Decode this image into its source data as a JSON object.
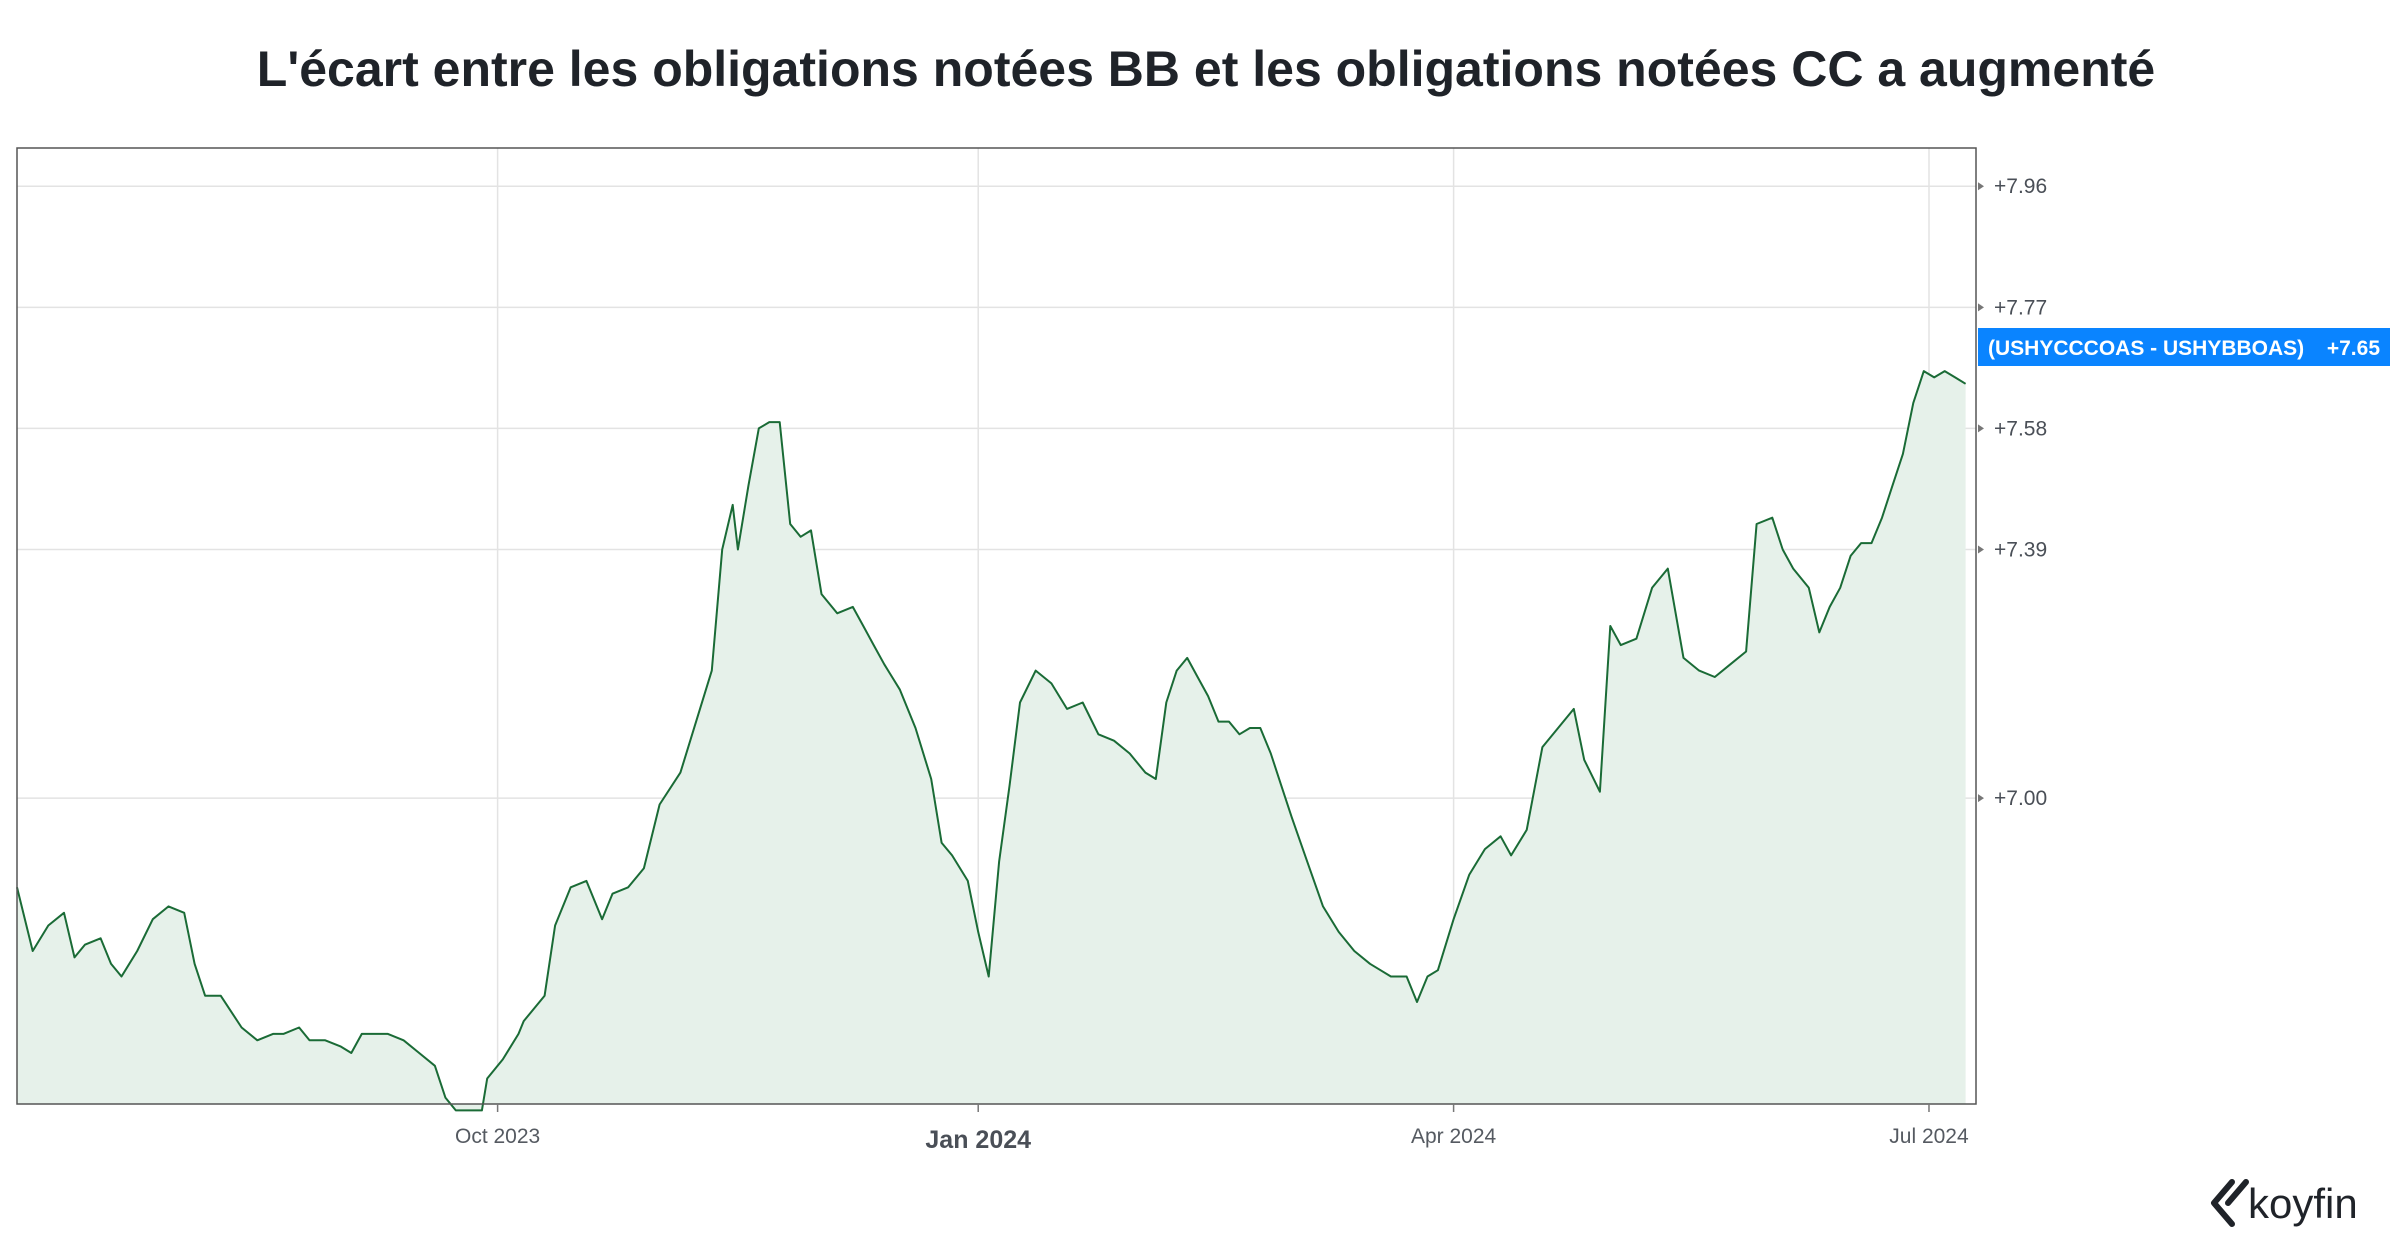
{
  "chart_data": {
    "type": "area",
    "title": "L'écart entre les obligations notées BB et les obligations notées CC a augmenté",
    "xlabel": "",
    "ylabel": "",
    "x_range": [
      "2023-07-01",
      "2024-07-10"
    ],
    "ylim": [
      6.52,
      8.02
    ],
    "grid": true,
    "legend": "none",
    "y_ticks": [
      {
        "value": 7.0,
        "label": "+7.00"
      },
      {
        "value": 7.39,
        "label": "+7.39"
      },
      {
        "value": 7.58,
        "label": "+7.58"
      },
      {
        "value": 7.77,
        "label": "+7.77"
      },
      {
        "value": 7.96,
        "label": "+7.96"
      }
    ],
    "x_ticks": [
      {
        "date": "2023-10-01",
        "label": "Oct 2023",
        "major": false
      },
      {
        "date": "2024-01-01",
        "label": "Jan 2024",
        "major": true
      },
      {
        "date": "2024-04-01",
        "label": "Apr 2024",
        "major": false
      },
      {
        "date": "2024-07-01",
        "label": "Jul 2024",
        "major": false
      }
    ],
    "series": [
      {
        "name": "(USHYCCCOAS - USHYBBOAS)",
        "last_value_label": "+7.65",
        "color": "#1a6b36",
        "fill": "#e6f1ea",
        "points": [
          [
            "2023-07-01",
            6.86
          ],
          [
            "2023-07-04",
            6.76
          ],
          [
            "2023-07-07",
            6.8
          ],
          [
            "2023-07-10",
            6.82
          ],
          [
            "2023-07-12",
            6.75
          ],
          [
            "2023-07-14",
            6.77
          ],
          [
            "2023-07-17",
            6.78
          ],
          [
            "2023-07-19",
            6.74
          ],
          [
            "2023-07-21",
            6.72
          ],
          [
            "2023-07-24",
            6.76
          ],
          [
            "2023-07-27",
            6.81
          ],
          [
            "2023-07-30",
            6.83
          ],
          [
            "2023-08-02",
            6.82
          ],
          [
            "2023-08-04",
            6.74
          ],
          [
            "2023-08-06",
            6.69
          ],
          [
            "2023-08-09",
            6.69
          ],
          [
            "2023-08-13",
            6.64
          ],
          [
            "2023-08-16",
            6.62
          ],
          [
            "2023-08-19",
            6.63
          ],
          [
            "2023-08-21",
            6.63
          ],
          [
            "2023-08-24",
            6.64
          ],
          [
            "2023-08-26",
            6.62
          ],
          [
            "2023-08-29",
            6.62
          ],
          [
            "2023-09-01",
            6.61
          ],
          [
            "2023-09-03",
            6.6
          ],
          [
            "2023-09-05",
            6.63
          ],
          [
            "2023-09-08",
            6.63
          ],
          [
            "2023-09-10",
            6.63
          ],
          [
            "2023-09-13",
            6.62
          ],
          [
            "2023-09-16",
            6.6
          ],
          [
            "2023-09-19",
            6.58
          ],
          [
            "2023-09-21",
            6.53
          ],
          [
            "2023-09-23",
            6.51
          ],
          [
            "2023-09-26",
            6.51
          ],
          [
            "2023-09-28",
            6.51
          ],
          [
            "2023-09-29",
            6.56
          ],
          [
            "2023-10-02",
            6.59
          ],
          [
            "2023-10-05",
            6.63
          ],
          [
            "2023-10-06",
            6.65
          ],
          [
            "2023-10-08",
            6.67
          ],
          [
            "2023-10-10",
            6.69
          ],
          [
            "2023-10-12",
            6.8
          ],
          [
            "2023-10-15",
            6.86
          ],
          [
            "2023-10-18",
            6.87
          ],
          [
            "2023-10-21",
            6.81
          ],
          [
            "2023-10-23",
            6.85
          ],
          [
            "2023-10-26",
            6.86
          ],
          [
            "2023-10-29",
            6.89
          ],
          [
            "2023-11-01",
            6.99
          ],
          [
            "2023-11-05",
            7.04
          ],
          [
            "2023-11-08",
            7.12
          ],
          [
            "2023-11-11",
            7.2
          ],
          [
            "2023-11-13",
            7.39
          ],
          [
            "2023-11-15",
            7.46
          ],
          [
            "2023-11-16",
            7.39
          ],
          [
            "2023-11-18",
            7.49
          ],
          [
            "2023-11-20",
            7.58
          ],
          [
            "2023-11-22",
            7.59
          ],
          [
            "2023-11-24",
            7.59
          ],
          [
            "2023-11-26",
            7.43
          ],
          [
            "2023-11-28",
            7.41
          ],
          [
            "2023-11-30",
            7.42
          ],
          [
            "2023-12-02",
            7.32
          ],
          [
            "2023-12-05",
            7.29
          ],
          [
            "2023-12-08",
            7.3
          ],
          [
            "2023-12-10",
            7.27
          ],
          [
            "2023-12-12",
            7.24
          ],
          [
            "2023-12-14",
            7.21
          ],
          [
            "2023-12-17",
            7.17
          ],
          [
            "2023-12-20",
            7.11
          ],
          [
            "2023-12-23",
            7.03
          ],
          [
            "2023-12-25",
            6.93
          ],
          [
            "2023-12-27",
            6.91
          ],
          [
            "2023-12-30",
            6.87
          ],
          [
            "2024-01-01",
            6.79
          ],
          [
            "2024-01-03",
            6.72
          ],
          [
            "2024-01-05",
            6.9
          ],
          [
            "2024-01-07",
            7.02
          ],
          [
            "2024-01-09",
            7.15
          ],
          [
            "2024-01-12",
            7.2
          ],
          [
            "2024-01-15",
            7.18
          ],
          [
            "2024-01-18",
            7.14
          ],
          [
            "2024-01-21",
            7.15
          ],
          [
            "2024-01-24",
            7.1
          ],
          [
            "2024-01-27",
            7.09
          ],
          [
            "2024-01-30",
            7.07
          ],
          [
            "2024-02-02",
            7.04
          ],
          [
            "2024-02-04",
            7.03
          ],
          [
            "2024-02-06",
            7.15
          ],
          [
            "2024-02-08",
            7.2
          ],
          [
            "2024-02-10",
            7.22
          ],
          [
            "2024-02-12",
            7.19
          ],
          [
            "2024-02-14",
            7.16
          ],
          [
            "2024-02-16",
            7.12
          ],
          [
            "2024-02-18",
            7.12
          ],
          [
            "2024-02-20",
            7.1
          ],
          [
            "2024-02-22",
            7.11
          ],
          [
            "2024-02-24",
            7.11
          ],
          [
            "2024-02-26",
            7.07
          ],
          [
            "2024-02-28",
            7.02
          ],
          [
            "2024-03-01",
            6.97
          ],
          [
            "2024-03-04",
            6.9
          ],
          [
            "2024-03-07",
            6.83
          ],
          [
            "2024-03-10",
            6.79
          ],
          [
            "2024-03-13",
            6.76
          ],
          [
            "2024-03-16",
            6.74
          ],
          [
            "2024-03-18",
            6.73
          ],
          [
            "2024-03-20",
            6.72
          ],
          [
            "2024-03-23",
            6.72
          ],
          [
            "2024-03-25",
            6.68
          ],
          [
            "2024-03-27",
            6.72
          ],
          [
            "2024-03-29",
            6.73
          ],
          [
            "2024-04-01",
            6.81
          ],
          [
            "2024-04-04",
            6.88
          ],
          [
            "2024-04-07",
            6.92
          ],
          [
            "2024-04-10",
            6.94
          ],
          [
            "2024-04-12",
            6.91
          ],
          [
            "2024-04-15",
            6.95
          ],
          [
            "2024-04-18",
            7.08
          ],
          [
            "2024-04-21",
            7.11
          ],
          [
            "2024-04-24",
            7.14
          ],
          [
            "2024-04-26",
            7.06
          ],
          [
            "2024-04-29",
            7.01
          ],
          [
            "2024-05-01",
            7.27
          ],
          [
            "2024-05-03",
            7.24
          ],
          [
            "2024-05-06",
            7.25
          ],
          [
            "2024-05-09",
            7.33
          ],
          [
            "2024-05-12",
            7.36
          ],
          [
            "2024-05-15",
            7.22
          ],
          [
            "2024-05-18",
            7.2
          ],
          [
            "2024-05-21",
            7.19
          ],
          [
            "2024-05-24",
            7.21
          ],
          [
            "2024-05-27",
            7.23
          ],
          [
            "2024-05-29",
            7.43
          ],
          [
            "2024-06-01",
            7.44
          ],
          [
            "2024-06-03",
            7.39
          ],
          [
            "2024-06-05",
            7.36
          ],
          [
            "2024-06-08",
            7.33
          ],
          [
            "2024-06-10",
            7.26
          ],
          [
            "2024-06-12",
            7.3
          ],
          [
            "2024-06-14",
            7.33
          ],
          [
            "2024-06-16",
            7.38
          ],
          [
            "2024-06-18",
            7.4
          ],
          [
            "2024-06-20",
            7.4
          ],
          [
            "2024-06-22",
            7.44
          ],
          [
            "2024-06-24",
            7.49
          ],
          [
            "2024-06-26",
            7.54
          ],
          [
            "2024-06-28",
            7.62
          ],
          [
            "2024-06-30",
            7.67
          ],
          [
            "2024-07-02",
            7.66
          ],
          [
            "2024-07-04",
            7.67
          ],
          [
            "2024-07-06",
            7.66
          ],
          [
            "2024-07-08",
            7.65
          ]
        ]
      }
    ]
  },
  "branding": {
    "logo_text": "koyfin",
    "logo_icon": "koyfin-chevron-icon"
  },
  "colors": {
    "line": "#1a6b36",
    "area_fill": "#e6f1ea",
    "badge": "#0a84ff",
    "grid": "#e3e3e3",
    "frame": "#555555"
  }
}
